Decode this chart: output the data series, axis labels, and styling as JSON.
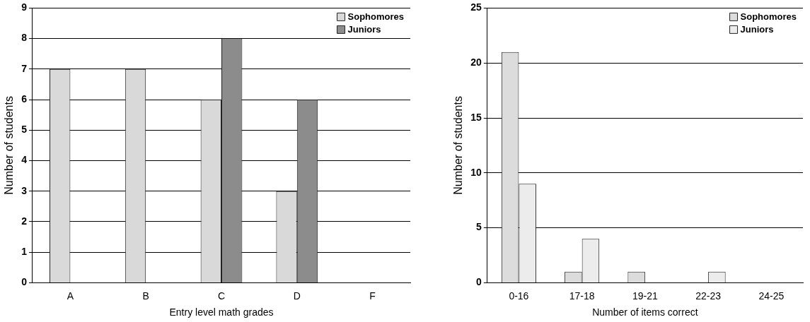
{
  "chart_data": [
    {
      "type": "bar",
      "xlabel": "Entry level math grades",
      "ylabel": "Number of students",
      "categories": [
        "A",
        "B",
        "C",
        "D",
        "F"
      ],
      "series": [
        {
          "name": "Sophomores",
          "color": "#d9d9d9",
          "values": [
            7,
            7,
            6,
            3,
            0
          ]
        },
        {
          "name": "Juniors",
          "color": "#8c8c8c",
          "values": [
            0,
            0,
            8,
            6,
            0
          ]
        }
      ],
      "ylim": [
        0,
        9
      ],
      "yticks": [
        0,
        1,
        2,
        3,
        4,
        5,
        6,
        7,
        8,
        9
      ],
      "grid": "y",
      "legend": "top right"
    },
    {
      "type": "bar",
      "xlabel": "Number of items correct",
      "ylabel": "Number of students",
      "categories": [
        "0-16",
        "17-18",
        "19-21",
        "22-23",
        "24-25"
      ],
      "series": [
        {
          "name": "Sophomores",
          "color": "#dcdcdc",
          "values": [
            21,
            1,
            1,
            0,
            0
          ]
        },
        {
          "name": "Juniors",
          "color": "#ececec",
          "values": [
            9,
            4,
            0,
            1,
            0
          ]
        }
      ],
      "ylim": [
        0,
        25
      ],
      "yticks": [
        0,
        5,
        10,
        15,
        20,
        25
      ],
      "grid": "y",
      "legend": "top right"
    }
  ]
}
